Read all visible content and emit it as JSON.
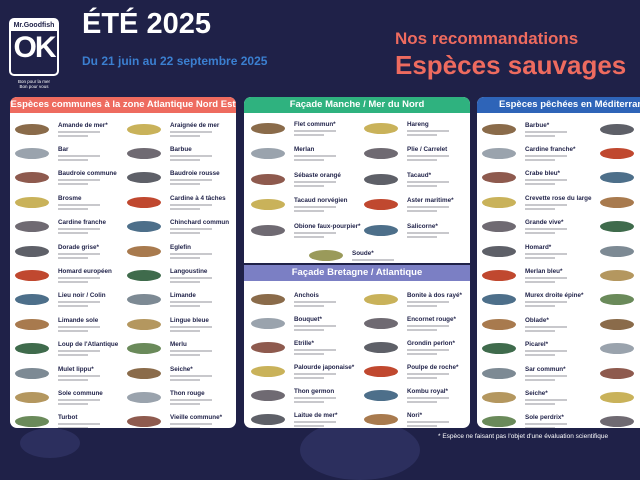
{
  "header": {
    "brand": "Mr.Goodfish",
    "logo_mark": "OK",
    "tagline_1": "Bon pour la mer",
    "tagline_2": "Bon pour vous",
    "title": "ÉTÉ 2025",
    "dates": "Du 21 juin au 22 septembre 2025",
    "reco": "Nos recommandations",
    "subtitle": "Espèces sauvages"
  },
  "colors": {
    "background": "#1f2148",
    "coral": "#ee6b5f",
    "green": "#2fb27f",
    "purple": "#7b7fc4",
    "blue": "#2e64b8",
    "date_blue": "#3b7fd0"
  },
  "panels": {
    "atlantique": {
      "title": "Espèces communes à la zone Atlantique Nord Est",
      "left": [
        "Amande de mer*",
        "Bar",
        "Baudroie commune",
        "Brosme",
        "Cardine franche",
        "Dorade grise*",
        "Homard européen",
        "Lieu noir / Colin",
        "Limande sole",
        "Loup de l'Atlantique",
        "Mulet lippu*",
        "Sole commune",
        "Turbot"
      ],
      "right": [
        "Araignée de mer",
        "Barbue",
        "Baudroie rousse",
        "Cardine à 4 tâches",
        "Chinchard commun",
        "Eglefin",
        "Langoustine",
        "Limande",
        "Lingue bleue",
        "Merlu",
        "Seiche*",
        "Thon rouge",
        "Vieille commune*"
      ]
    },
    "manche": {
      "title": "Façade Manche / Mer du Nord",
      "left": [
        "Flet commun*",
        "Merlan",
        "Sébaste orangé",
        "Tacaud norvégien",
        "Obione faux-pourpier*"
      ],
      "right": [
        "Hareng",
        "Plie / Carrelet",
        "Tacaud*",
        "Aster maritime*",
        "Salicorne*"
      ],
      "center": "Soude*"
    },
    "bretagne": {
      "title": "Façade Bretagne / Atlantique",
      "left": [
        "Anchois",
        "Bouquet*",
        "Etrille*",
        "Palourde japonaise*",
        "Thon germon",
        "Laitue de mer*"
      ],
      "right": [
        "Bonite à dos rayé*",
        "Encornet rouge*",
        "Grondin perlon*",
        "Poulpe de roche*",
        "Kombu royal*",
        "Nori*"
      ]
    },
    "mediterranee": {
      "title": "Espèces pêchées en Méditerranée",
      "left": [
        "Barbue*",
        "Cardine franche*",
        "Crabe bleu*",
        "Crevette rose du large",
        "Grande vive*",
        "Homard*",
        "Merlan bleu*",
        "Murex droite épine*",
        "Oblade*",
        "Picarel*",
        "Sar commun*",
        "Seiche*",
        "Sole perdrix*"
      ]
    }
  },
  "footnote": "* Espèce ne faisant pas l'objet d'une évaluation scientifique"
}
